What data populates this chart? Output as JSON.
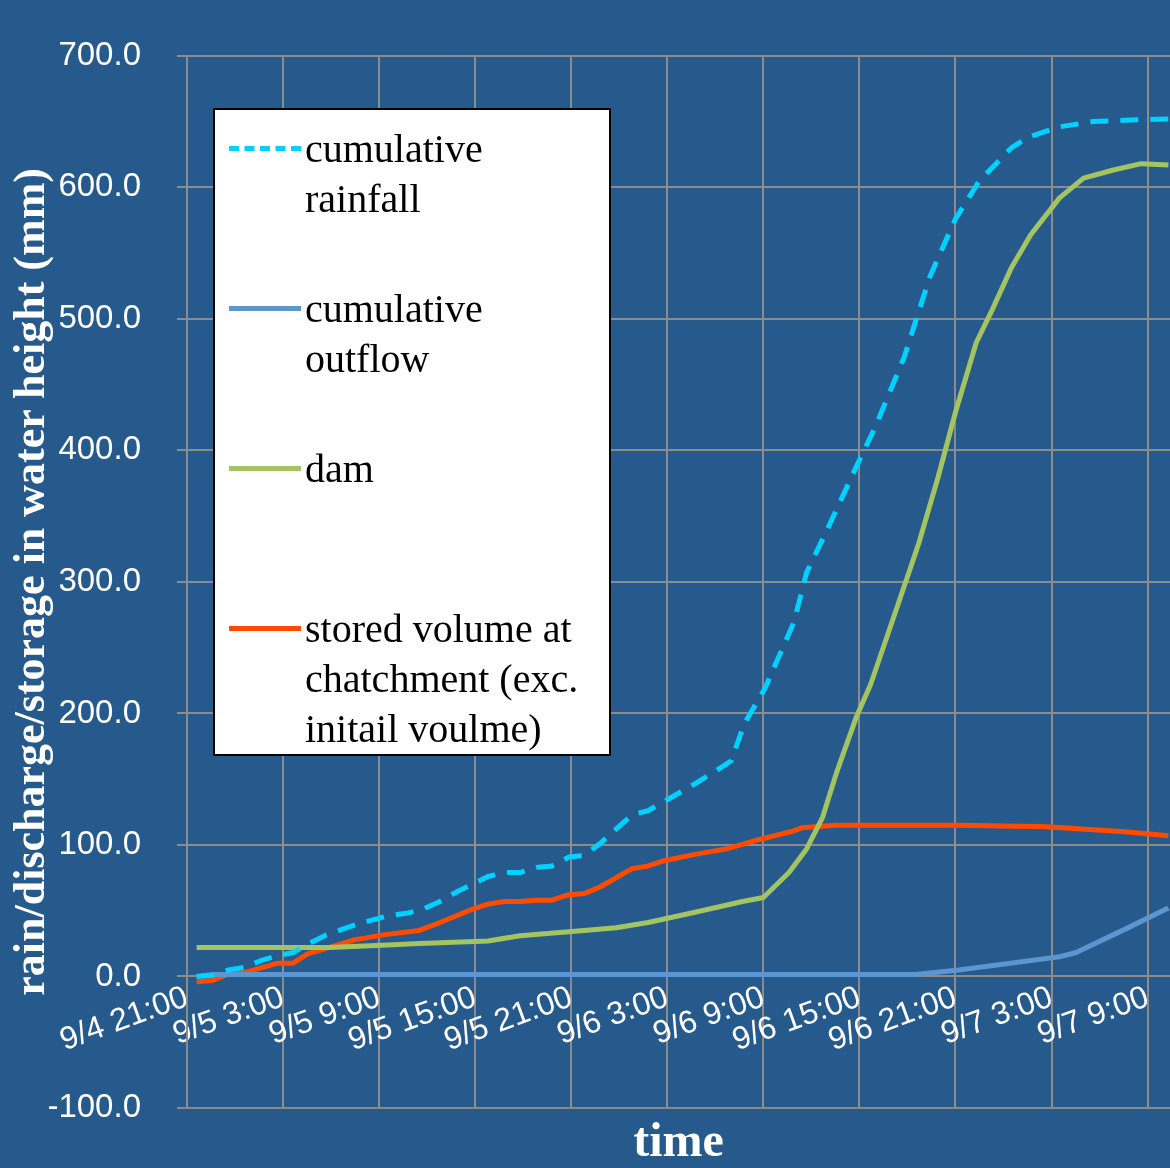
{
  "chart_data": {
    "type": "line",
    "xlabel": "time",
    "ylabel": "rain/discharge/storage in water height (mm)",
    "xlim": [
      "--09-04T21:00",
      "--09-07T10:24"
    ],
    "xticks": [
      {
        "value": "--09-04T21:00",
        "label": "9/4 21:00"
      },
      {
        "value": "--09-05T03:00",
        "label": "9/5 3:00"
      },
      {
        "value": "--09-05T09:00",
        "label": "9/5 9:00"
      },
      {
        "value": "--09-05T15:00",
        "label": "9/5 15:00"
      },
      {
        "value": "--09-05T21:00",
        "label": "9/5 21:00"
      },
      {
        "value": "--09-06T03:00",
        "label": "9/6 3:00"
      },
      {
        "value": "--09-06T09:00",
        "label": "9/6 9:00"
      },
      {
        "value": "--09-06T15:00",
        "label": "9/6 15:00"
      },
      {
        "value": "--09-06T21:00",
        "label": "9/6 21:00"
      },
      {
        "value": "--09-07T03:00",
        "label": "9/7 3:00"
      },
      {
        "value": "--09-07T09:00",
        "label": "9/7 9:00"
      }
    ],
    "ylim": [
      -100,
      700
    ],
    "yticks": [
      {
        "value": -100,
        "label": "-100.0"
      },
      {
        "value": 0,
        "label": "0.0"
      },
      {
        "value": 100,
        "label": "100.0"
      },
      {
        "value": 200,
        "label": "200.0"
      },
      {
        "value": 300,
        "label": "300.0"
      },
      {
        "value": 400,
        "label": "400.0"
      },
      {
        "value": 500,
        "label": "500.0"
      },
      {
        "value": 600,
        "label": "600.0"
      },
      {
        "value": 700,
        "label": "700.0"
      }
    ],
    "grid": true,
    "legend": "top left",
    "marker": "none",
    "series": [
      {
        "name": "cumulative rainfall",
        "color": "#00d2ff",
        "line_style": "dashed",
        "x": [
          "--09-04T21:36",
          "--09-04T22:36",
          "--09-04T23:36",
          "--09-05T00:36",
          "--09-05T01:36",
          "--09-05T02:42",
          "--09-05T03:36",
          "--09-05T04:36",
          "--09-05T05:36",
          "--09-05T06:30",
          "--09-05T07:42",
          "--09-05T09:30",
          "--09-05T10:42",
          "--09-05T11:42",
          "--09-05T12:48",
          "--09-05T13:48",
          "--09-05T14:48",
          "--09-05T15:48",
          "--09-05T16:48",
          "--09-05T17:48",
          "--09-05T18:54",
          "--09-05T19:48",
          "--09-05T20:54",
          "--09-05T21:48",
          "--09-05T22:48",
          "--09-05T23:48",
          "--09-06T00:48",
          "--09-06T01:48",
          "--09-06T02:48",
          "--09-06T04:48",
          "--09-06T06:00",
          "--09-06T07:00",
          "--09-06T07:48",
          "--09-06T09:06",
          "--09-06T10:54",
          "--09-06T11:42",
          "--09-06T13:00",
          "--09-06T14:54",
          "--09-06T16:00",
          "--09-06T17:48",
          "--09-06T19:24",
          "--09-06T21:00",
          "--09-06T22:30",
          "--09-07T00:30",
          "--09-07T01:30",
          "--09-07T03:30",
          "--09-07T05:36",
          "--09-07T07:36",
          "--09-07T10:18"
        ],
        "values": [
          0,
          1,
          5,
          7,
          12,
          16,
          18,
          25,
          31,
          35,
          40,
          46,
          48,
          51,
          57,
          64,
          70,
          76,
          79,
          79,
          83,
          84,
          91,
          92,
          101,
          112,
          123,
          126,
          133,
          147,
          156,
          164,
          192,
          219,
          269,
          307,
          340,
          390,
          418,
          471,
          532,
          576,
          605,
          630,
          638,
          646,
          650,
          651,
          652
        ]
      },
      {
        "name": "cumulative outflow",
        "color": "#5b96d0",
        "x": [
          "--09-04T21:36",
          "--09-04T22:36",
          "--09-05T07:00",
          "--09-05T17:00",
          "--09-06T03:00",
          "--09-06T13:00",
          "--09-06T18:30",
          "--09-06T21:12",
          "--09-07T03:30",
          "--09-07T04:30",
          "--09-07T07:36",
          "--09-07T10:18"
        ],
        "values": [
          0,
          1.5,
          1.5,
          1.5,
          1.5,
          1.5,
          1.5,
          5,
          15,
          18,
          36,
          52
        ]
      },
      {
        "name": "dam",
        "color": "#a3c461",
        "x": [
          "--09-04T21:36",
          "--09-05T05:54",
          "--09-05T09:30",
          "--09-05T11:30",
          "--09-05T15:48",
          "--09-05T17:48",
          "--09-05T21:48",
          "--09-05T23:48",
          "--09-06T01:48",
          "--09-06T04:48",
          "--09-06T07:42",
          "--09-06T09:00",
          "--09-06T10:36",
          "--09-06T11:42",
          "--09-06T12:42",
          "--09-06T13:36",
          "--09-06T14:48",
          "--09-06T15:42",
          "--09-06T17:30",
          "--09-06T18:42",
          "--09-06T19:54",
          "--09-06T21:00",
          "--09-06T22:18",
          "--09-06T23:18",
          "--09-07T00:30",
          "--09-07T01:42",
          "--09-07T03:30",
          "--09-07T05:00",
          "--09-07T06:48",
          "--09-07T08:36",
          "--09-07T10:18"
        ],
        "values": [
          22,
          22,
          24,
          25,
          27,
          31,
          35,
          37,
          41,
          49,
          57,
          60,
          79,
          97,
          121,
          156,
          197,
          222,
          286,
          329,
          379,
          429,
          482,
          507,
          539,
          564,
          592,
          607,
          613,
          618,
          617
        ]
      },
      {
        "name": "stored volume at chatchment (exc. initail voulme)",
        "color": "#ff4b00",
        "x": [
          "--09-04T21:36",
          "--09-04T22:36",
          "--09-04T23:36",
          "--09-05T00:36",
          "--09-05T02:36",
          "--09-05T03:36",
          "--09-05T04:30",
          "--09-05T07:30",
          "--09-05T09:30",
          "--09-05T11:30",
          "--09-05T12:48",
          "--09-05T14:48",
          "--09-05T15:48",
          "--09-05T16:48",
          "--09-05T17:48",
          "--09-05T18:48",
          "--09-05T19:48",
          "--09-05T20:48",
          "--09-05T21:48",
          "--09-05T22:48",
          "--09-06T00:48",
          "--09-06T01:48",
          "--09-06T02:48",
          "--09-06T04:48",
          "--09-06T06:42",
          "--09-06T08:42",
          "--09-06T10:42",
          "--09-06T11:24",
          "--09-06T13:30",
          "--09-06T21:12",
          "--09-07T02:24",
          "--09-07T07:36",
          "--09-07T10:18"
        ],
        "values": [
          -4,
          -3,
          2,
          3,
          10,
          10,
          17,
          28,
          32,
          35,
          41,
          51,
          55,
          57,
          57,
          58,
          58,
          62,
          63,
          68,
          82,
          84,
          88,
          93,
          97,
          104,
          110,
          113,
          115,
          115,
          114,
          110,
          107
        ]
      }
    ]
  }
}
